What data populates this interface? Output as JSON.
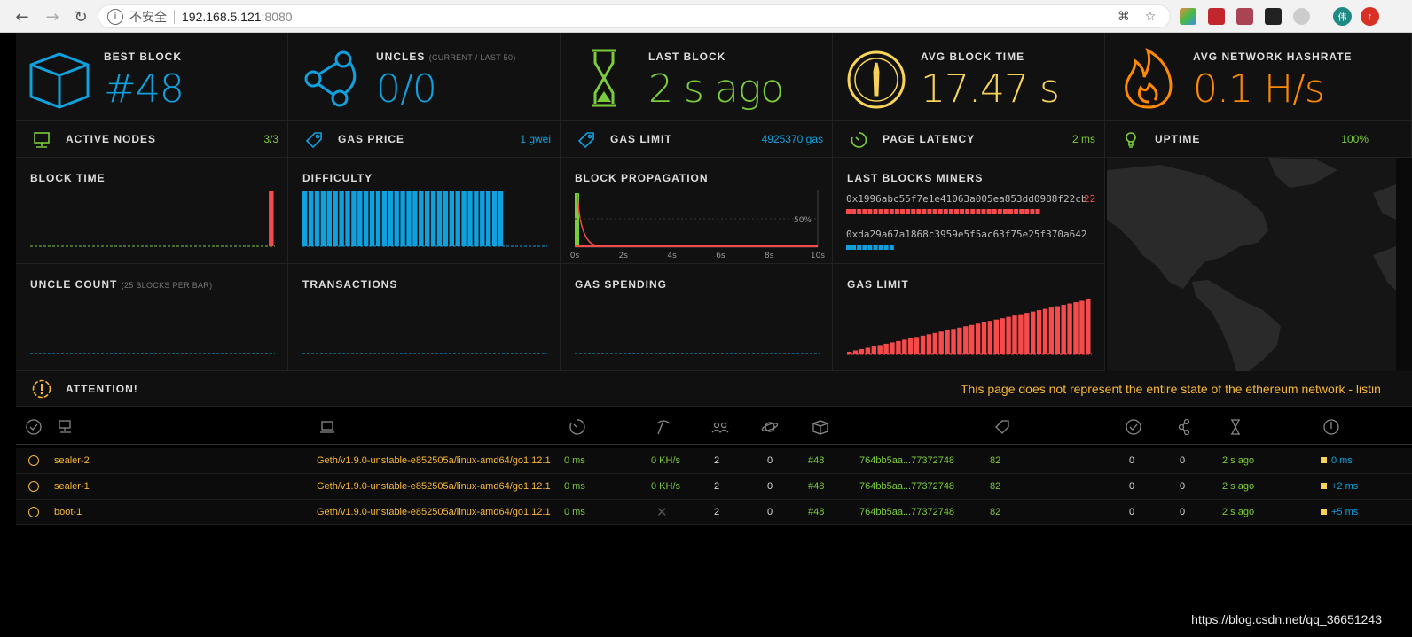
{
  "browser": {
    "insecure_label": "不安全",
    "url_host": "192.168.5.121",
    "url_port": ":8080",
    "avatar_initial": "伟"
  },
  "colors": {
    "blue": "#10a0de",
    "green": "#7bcc3a",
    "yellow": "#f7b733",
    "orange": "#ff8a00",
    "red": "#f74b4b"
  },
  "stats": {
    "best_block": {
      "label": "BEST BLOCK",
      "value": "#48",
      "icon": "cube-icon"
    },
    "uncles": {
      "label": "UNCLES",
      "sub": "(CURRENT / LAST 50)",
      "value": "0/0",
      "icon": "fork-icon"
    },
    "last_block": {
      "label": "LAST BLOCK",
      "value": "2 s ago",
      "icon": "hourglass-icon"
    },
    "avg_block_time": {
      "label": "AVG BLOCK TIME",
      "value": "17.47 s",
      "icon": "gauge-icon"
    },
    "avg_hashrate": {
      "label": "AVG NETWORK HASHRATE",
      "value": "0.1 H/s",
      "icon": "flame-icon"
    }
  },
  "small_stats": {
    "active_nodes": {
      "label": "ACTIVE NODES",
      "value": "3/3"
    },
    "gas_price": {
      "label": "GAS PRICE",
      "value": "1 gwei"
    },
    "gas_limit": {
      "label": "GAS LIMIT",
      "value": "4925370 gas"
    },
    "page_latency": {
      "label": "PAGE LATENCY",
      "value": "2 ms"
    },
    "uptime": {
      "label": "UPTIME",
      "value": "100%"
    }
  },
  "charts": {
    "block_time": {
      "label": "BLOCK TIME"
    },
    "difficulty": {
      "label": "DIFFICULTY"
    },
    "block_propagation": {
      "label": "BLOCK PROPAGATION",
      "pct_label": "50%",
      "ticks": [
        "0s",
        "2s",
        "4s",
        "6s",
        "8s",
        "10s"
      ]
    },
    "last_blocks_miners": {
      "label": "LAST BLOCKS MINERS",
      "miners": [
        {
          "address": "0x1996abc55f7e1e41063a005ea853dd0988f22cb",
          "count": "22"
        },
        {
          "address": "0xda29a67a1868c3959e5f5ac63f75e25f370a642",
          "count": ""
        }
      ]
    },
    "uncle_count": {
      "label": "UNCLE COUNT",
      "sub": "(25 BLOCKS PER BAR)"
    },
    "transactions": {
      "label": "TRANSACTIONS"
    },
    "gas_spending": {
      "label": "GAS SPENDING"
    },
    "gas_limit": {
      "label": "GAS LIMIT"
    }
  },
  "chart_data": [
    {
      "type": "bar",
      "title": "BLOCK TIME",
      "values": [
        0,
        0,
        0,
        0,
        0,
        0,
        0,
        0,
        0,
        0,
        0,
        0,
        0,
        0,
        0,
        0,
        0,
        0,
        0,
        0,
        0,
        0,
        0,
        0,
        0,
        0,
        0,
        0,
        0,
        0,
        0,
        0,
        0,
        0,
        0,
        0,
        0,
        0,
        0,
        1
      ]
    },
    {
      "type": "bar",
      "title": "DIFFICULTY",
      "values": [
        1,
        1,
        1,
        1,
        1,
        1,
        1,
        1,
        1,
        1,
        1,
        1,
        1,
        1,
        1,
        1,
        1,
        1,
        1,
        1,
        1,
        1,
        1,
        1,
        1,
        1,
        1,
        1,
        1,
        1,
        1,
        1,
        1,
        0,
        0,
        0,
        0,
        0,
        0,
        0
      ]
    },
    {
      "type": "bar",
      "title": "GAS LIMIT",
      "values": [
        2,
        3,
        4,
        5,
        6,
        7,
        8,
        9,
        10,
        11,
        12,
        13,
        14,
        15,
        16,
        17,
        18,
        19,
        20,
        21,
        22,
        23,
        24,
        25,
        26,
        27,
        28,
        29,
        30,
        31,
        32,
        33,
        34,
        35,
        36,
        37,
        38,
        39,
        40,
        41
      ]
    }
  ],
  "attention": {
    "label": "ATTENTION!",
    "message": "This page does not represent the entire state of the ethereum network - listin"
  },
  "nodes": [
    {
      "name": "sealer-2",
      "client": "Geth/v1.9.0-unstable-e852505a/linux-amd64/go1.12.1",
      "latency": "0 ms",
      "hashrate": "0 KH/s",
      "peers": "2",
      "pending": "0",
      "block": "#48",
      "hash": "764bb5aa...77372748",
      "txs": "82",
      "uncles": "0",
      "uncles2": "0",
      "last": "2 s ago",
      "propagation": "0 ms"
    },
    {
      "name": "sealer-1",
      "client": "Geth/v1.9.0-unstable-e852505a/linux-amd64/go1.12.1",
      "latency": "0 ms",
      "hashrate": "0 KH/s",
      "peers": "2",
      "pending": "0",
      "block": "#48",
      "hash": "764bb5aa...77372748",
      "txs": "82",
      "uncles": "0",
      "uncles2": "0",
      "last": "2 s ago",
      "propagation": "+2 ms"
    },
    {
      "name": "boot-1",
      "client": "Geth/v1.9.0-unstable-e852505a/linux-amd64/go1.12.1",
      "latency": "0 ms",
      "hashrate": "",
      "peers": "2",
      "pending": "0",
      "block": "#48",
      "hash": "764bb5aa...77372748",
      "txs": "82",
      "uncles": "0",
      "uncles2": "0",
      "last": "2 s ago",
      "propagation": "+5 ms"
    }
  ],
  "watermark": "https://blog.csdn.net/qq_36651243"
}
